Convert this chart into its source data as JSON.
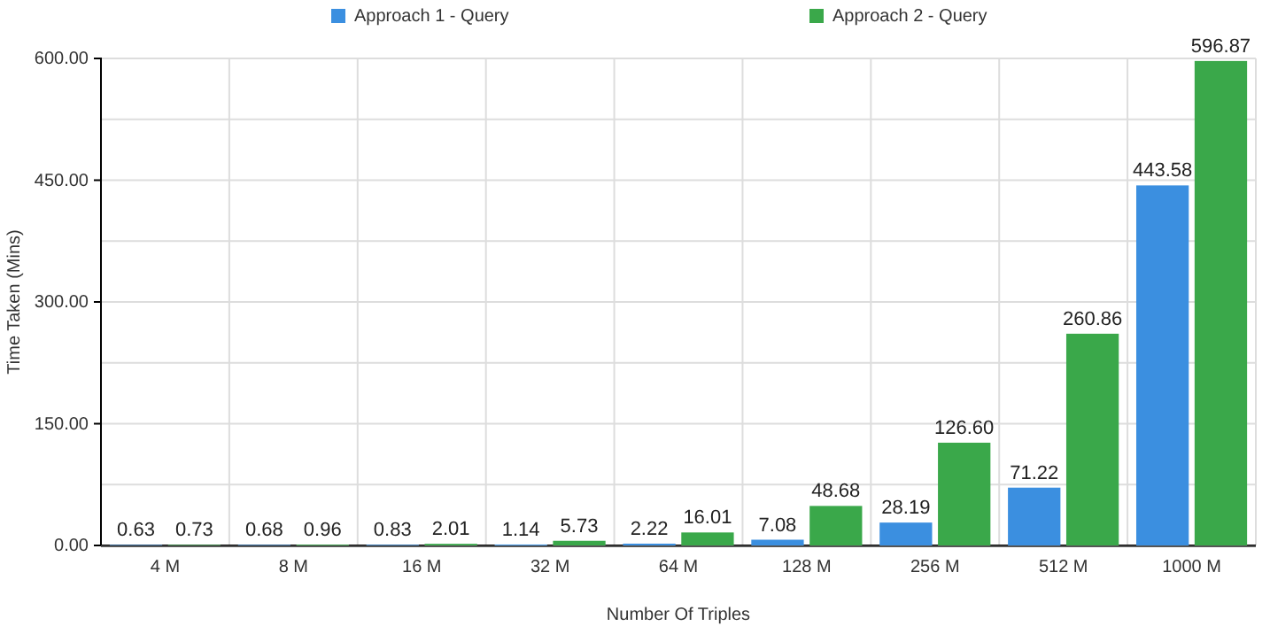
{
  "chart_data": {
    "type": "bar",
    "xlabel": "Number Of Triples",
    "ylabel": "Time Taken (Mins)",
    "categories": [
      "4 M",
      "8 M",
      "16 M",
      "32 M",
      "64 M",
      "128 M",
      "256 M",
      "512 M",
      "1000 M"
    ],
    "series": [
      {
        "name": "Approach 1 - Query",
        "color": "#3b8fe0",
        "values": [
          0.63,
          0.68,
          0.83,
          1.14,
          2.22,
          7.08,
          28.19,
          71.22,
          443.58
        ]
      },
      {
        "name": "Approach 2 - Query",
        "color": "#3aa84a",
        "values": [
          0.73,
          0.96,
          2.01,
          5.73,
          16.01,
          48.68,
          126.6,
          260.86,
          596.87
        ]
      }
    ],
    "value_labels": [
      [
        "0.63",
        "0.68",
        "0.83",
        "1.14",
        "2.22",
        "7.08",
        "28.19",
        "71.22",
        "443.58"
      ],
      [
        "0.73",
        "0.96",
        "2.01",
        "5.73",
        "16.01",
        "48.68",
        "126.60",
        "260.86",
        "596.87"
      ]
    ],
    "ylim": [
      0,
      600
    ],
    "yticks": [
      {
        "value": 0,
        "label": "0.00"
      },
      {
        "value": 75,
        "label": null
      },
      {
        "value": 150,
        "label": "150.00"
      },
      {
        "value": 225,
        "label": null
      },
      {
        "value": 300,
        "label": "300.00"
      },
      {
        "value": 375,
        "label": null
      },
      {
        "value": 450,
        "label": "450.00"
      },
      {
        "value": 525,
        "label": null
      },
      {
        "value": 600,
        "label": "600.00"
      }
    ],
    "grid": true,
    "legend": "top"
  }
}
